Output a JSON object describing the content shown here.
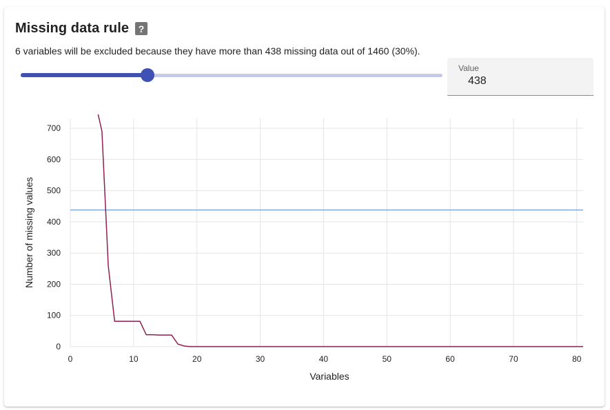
{
  "panel": {
    "title": "Missing data rule",
    "help_icon": "question-mark-icon",
    "description": "6 variables will be excluded because they have more than 438 missing data out of 1460 (30%).",
    "slider": {
      "value": 438,
      "max": 1460,
      "track_color": "#3f51b5",
      "rail_color": "#c5cae9"
    },
    "value_field": {
      "label": "Value",
      "value": "438"
    }
  },
  "chart_data": {
    "type": "line",
    "xlabel": "Variables",
    "ylabel": "Number of missing values",
    "xlim": [
      0,
      81
    ],
    "ylim": [
      0,
      740
    ],
    "x_ticks": [
      0,
      10,
      20,
      30,
      40,
      50,
      60,
      70,
      80
    ],
    "y_ticks": [
      0,
      100,
      200,
      300,
      400,
      500,
      600,
      700
    ],
    "grid": true,
    "threshold": {
      "value": 438,
      "color": "#6c9bd2"
    },
    "series": [
      {
        "color": "#8e1f4f",
        "x": [
          5,
          6,
          7,
          8,
          9,
          10,
          11,
          12,
          13,
          14,
          15,
          16,
          17,
          18,
          19,
          20,
          81
        ],
        "y": [
          690,
          259,
          81,
          81,
          81,
          81,
          81,
          38,
          38,
          37,
          37,
          37,
          8,
          2,
          0,
          0,
          0
        ],
        "enters_from_above": true
      }
    ]
  }
}
